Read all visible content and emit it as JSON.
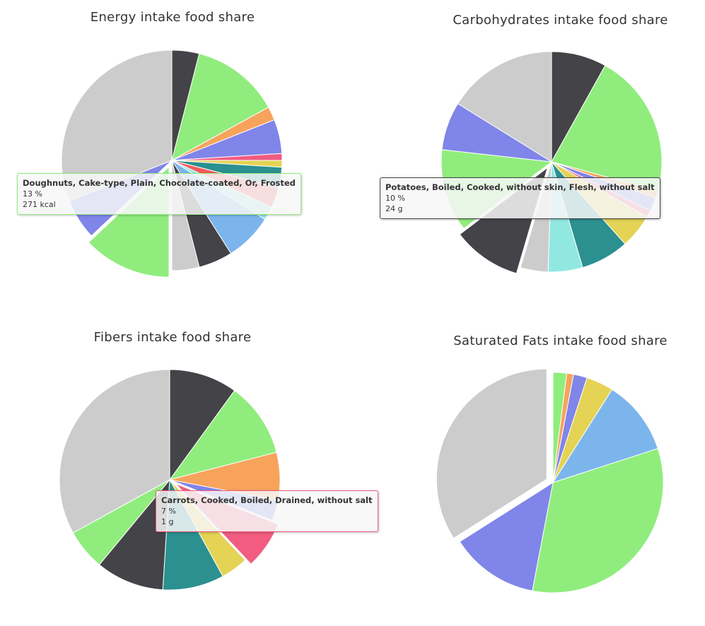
{
  "chart_data": [
    {
      "type": "pie",
      "title": "Energy intake food share",
      "tooltip": {
        "name": "Doughnuts, Cake-type, Plain, Chocolate-coated, Or, Frosted",
        "percent": "13 %",
        "value": "271 kcal",
        "border_color": "#90ed7d"
      },
      "values": [
        4,
        13,
        2,
        5,
        1,
        1,
        3,
        3,
        2,
        7,
        5,
        4,
        13,
        6,
        31
      ],
      "colors": [
        "#434348",
        "#90ed7d",
        "#f7a35c",
        "#8085e9",
        "#f15c80",
        "#e4d354",
        "#2b908f",
        "#f45b5b",
        "#91e8e1",
        "#7cb5ec",
        "#434348",
        "#cccccc",
        "#90ed7d",
        "#8085e9",
        "#cccccc"
      ],
      "sliced_index": 12
    },
    {
      "type": "pie",
      "title": "Carbohydrates intake food share",
      "tooltip": {
        "name": "Potatoes, Boiled, Cooked, without skin, Flesh, without salt",
        "percent": "10 %",
        "value": "24 g",
        "border_color": "#434348"
      },
      "values": [
        8,
        21,
        1,
        2,
        1,
        5,
        7,
        5,
        4,
        10,
        12,
        7,
        16
      ],
      "colors": [
        "#434348",
        "#90ed7d",
        "#f7a35c",
        "#8085e9",
        "#f15c80",
        "#e4d354",
        "#2b908f",
        "#91e8e1",
        "#cccccc",
        "#434348",
        "#90ed7d",
        "#8085e9",
        "#cccccc"
      ],
      "sliced_index": 9
    },
    {
      "type": "pie",
      "title": "Fibers intake food share",
      "tooltip": {
        "name": "Carrots, Cooked, Boiled, Drained, without salt",
        "percent": "7 %",
        "value": "1 g",
        "border_color": "#f15c80"
      },
      "values": [
        10,
        11,
        7,
        3,
        7,
        4,
        9,
        10,
        6,
        33
      ],
      "colors": [
        "#434348",
        "#90ed7d",
        "#f7a35c",
        "#8085e9",
        "#f15c80",
        "#e4d354",
        "#2b908f",
        "#434348",
        "#90ed7d",
        "#cccccc"
      ],
      "sliced_index": 4
    },
    {
      "type": "pie",
      "title": "Saturated Fats intake food share",
      "tooltip": null,
      "values": [
        2,
        1,
        2,
        4,
        11,
        33,
        13,
        34
      ],
      "colors": [
        "#90ed7d",
        "#f7a35c",
        "#8085e9",
        "#e4d354",
        "#7cb5ec",
        "#90ed7d",
        "#8085e9",
        "#cccccc"
      ],
      "sliced_index": 7
    }
  ]
}
